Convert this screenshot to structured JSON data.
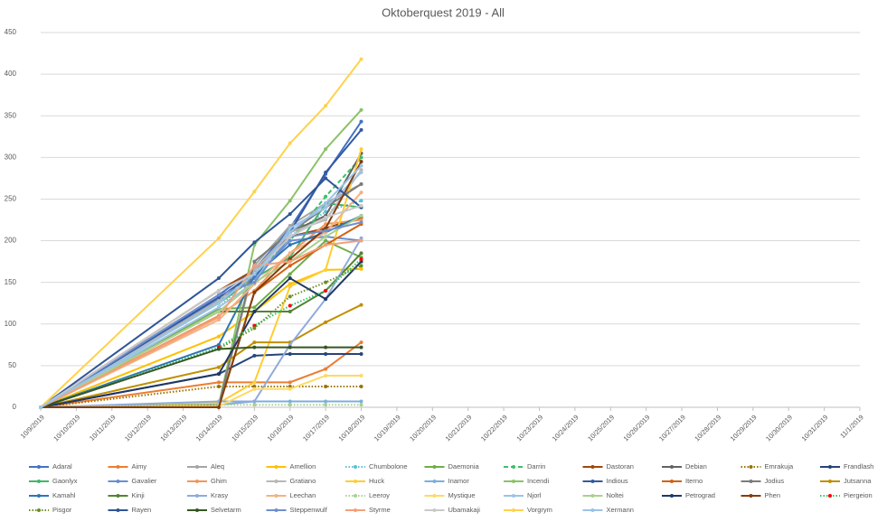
{
  "chart_data": {
    "type": "line",
    "title": "Oktoberquest 2019 - All",
    "x": [
      "10/9/2019",
      "10/14/2019",
      "10/15/2019",
      "10/16/2019",
      "10/17/2019",
      "10/18/2019"
    ],
    "xticks": [
      "10/9/2019",
      "10/10/2019",
      "10/11/2019",
      "10/12/2019",
      "10/13/2019",
      "10/14/2019",
      "10/15/2019",
      "10/16/2019",
      "10/17/2019",
      "10/18/2019",
      "10/19/2019",
      "10/20/2019",
      "10/21/2019",
      "10/22/2019",
      "10/23/2019",
      "10/24/2019",
      "10/25/2019",
      "10/26/2019",
      "10/27/2019",
      "10/28/2019",
      "10/29/2019",
      "10/30/2019",
      "10/31/2019",
      "11/1/2019"
    ],
    "ylim": [
      0,
      450
    ],
    "yticks": [
      0,
      50,
      100,
      150,
      200,
      250,
      300,
      350,
      400,
      450
    ],
    "grid": true,
    "legend": "bottom",
    "series": [
      {
        "name": "Adaral",
        "color": "#4472c4",
        "values": [
          0,
          135,
          165,
          215,
          280,
          343
        ]
      },
      {
        "name": "Aimy",
        "color": "#ed7d31",
        "values": [
          0,
          30,
          30,
          30,
          46,
          78
        ]
      },
      {
        "name": "Aleq",
        "color": "#a5a5a5",
        "values": [
          0,
          2,
          170,
          218,
          245,
          268
        ]
      },
      {
        "name": "Amellion",
        "color": "#ffc000",
        "values": [
          0,
          85,
          115,
          148,
          165,
          166
        ]
      },
      {
        "name": "Chumbolone",
        "color": "#5bc0d5",
        "dash": "dot",
        "values": [
          0,
          120,
          160,
          205,
          235,
          248
        ]
      },
      {
        "name": "Daemonia",
        "color": "#70ad47",
        "values": [
          0,
          118,
          120,
          160,
          200,
          180
        ]
      },
      {
        "name": "Darrin",
        "color": "#3cc06a",
        "dash": "dash",
        "values": [
          0,
          128,
          160,
          200,
          253,
          300
        ]
      },
      {
        "name": "Dastoran",
        "color": "#9e480e",
        "values": [
          0,
          140,
          165,
          205,
          215,
          228
        ]
      },
      {
        "name": "Debian",
        "color": "#636363",
        "values": [
          0,
          128,
          165,
          210,
          230,
          305
        ]
      },
      {
        "name": "Emrakuja",
        "color": "#997300",
        "dash": "dot",
        "values": [
          0,
          25,
          25,
          25,
          25,
          25
        ]
      },
      {
        "name": "Frandlash",
        "color": "#264478",
        "values": [
          0,
          40,
          62,
          64,
          64,
          64
        ]
      },
      {
        "name": "Gaonlyx",
        "color": "#43b56b",
        "values": [
          0,
          125,
          155,
          180,
          245,
          240
        ]
      },
      {
        "name": "Gavalier",
        "color": "#698ed0",
        "values": [
          0,
          130,
          155,
          200,
          205,
          200
        ]
      },
      {
        "name": "Ghim",
        "color": "#f1975a",
        "values": [
          0,
          110,
          140,
          185,
          220,
          225
        ]
      },
      {
        "name": "Gratiano",
        "color": "#b7b7b7",
        "values": [
          0,
          128,
          165,
          210,
          225,
          285
        ]
      },
      {
        "name": "Huck",
        "color": "#ffcd33",
        "values": [
          0,
          5,
          30,
          145,
          165,
          310
        ]
      },
      {
        "name": "Inamor",
        "color": "#7cafdd",
        "values": [
          0,
          3,
          7,
          7,
          7,
          7
        ]
      },
      {
        "name": "Incendi",
        "color": "#8cc168",
        "values": [
          0,
          3,
          195,
          248,
          310,
          357
        ]
      },
      {
        "name": "Indious",
        "color": "#335aa1",
        "values": [
          0,
          132,
          160,
          210,
          282,
          333
        ]
      },
      {
        "name": "Iterno",
        "color": "#d26012",
        "values": [
          0,
          1,
          138,
          170,
          195,
          220
        ]
      },
      {
        "name": "Jodius",
        "color": "#7b7b7b",
        "values": [
          0,
          2,
          175,
          210,
          240,
          268
        ]
      },
      {
        "name": "Jutsanna",
        "color": "#bf9000",
        "values": [
          0,
          48,
          78,
          78,
          102,
          123
        ]
      },
      {
        "name": "Kamahl",
        "color": "#2e75b6",
        "values": [
          0,
          75,
          158,
          195,
          210,
          230
        ]
      },
      {
        "name": "Kinji",
        "color": "#548235",
        "values": [
          0,
          115,
          115,
          115,
          140,
          185
        ]
      },
      {
        "name": "Krasy",
        "color": "#8faadc",
        "values": [
          0,
          7,
          7,
          75,
          130,
          203
        ]
      },
      {
        "name": "Leechan",
        "color": "#f4b183",
        "values": [
          0,
          105,
          148,
          185,
          210,
          258
        ]
      },
      {
        "name": "Leeroy",
        "color": "#a9d18e",
        "dash": "dot",
        "values": [
          0,
          3,
          3,
          3,
          3,
          3
        ]
      },
      {
        "name": "Mystique",
        "color": "#ffd966",
        "values": [
          0,
          1,
          22,
          22,
          38,
          38
        ]
      },
      {
        "name": "Njorl",
        "color": "#9dc3e6",
        "values": [
          0,
          120,
          150,
          215,
          240,
          282
        ]
      },
      {
        "name": "Noltei",
        "color": "#a9d18e",
        "values": [
          0,
          115,
          150,
          175,
          205,
          230
        ]
      },
      {
        "name": "Petrograd",
        "color": "#1f3864",
        "values": [
          0,
          40,
          115,
          155,
          130,
          175
        ]
      },
      {
        "name": "Phen",
        "color": "#843c0c",
        "values": [
          0,
          0,
          138,
          178,
          215,
          295
        ]
      },
      {
        "name": "Piergeion",
        "color": "#2ec866",
        "dash": "dot",
        "marker_color": "#ff0000",
        "values": [
          0,
          72,
          98,
          122,
          140,
          178
        ]
      },
      {
        "name": "Pisgor",
        "color": "#6b8e23",
        "dash": "dot",
        "values": [
          0,
          70,
          95,
          133,
          150,
          170
        ]
      },
      {
        "name": "Rayen",
        "color": "#2f5597",
        "values": [
          0,
          155,
          198,
          232,
          275,
          240
        ]
      },
      {
        "name": "Selvetarm",
        "color": "#375623",
        "values": [
          0,
          70,
          72,
          72,
          72,
          72
        ]
      },
      {
        "name": "Steppenwulf",
        "color": "#6f8fcf",
        "values": [
          0,
          135,
          150,
          205,
          212,
          222
        ]
      },
      {
        "name": "Styrme",
        "color": "#f4a07a",
        "values": [
          0,
          108,
          170,
          175,
          195,
          200
        ]
      },
      {
        "name": "Ubamakaji",
        "color": "#c9c9c9",
        "values": [
          0,
          140,
          160,
          205,
          228,
          242
        ]
      },
      {
        "name": "Vorgrym",
        "color": "#ffd24d",
        "values": [
          0,
          203,
          259,
          317,
          362,
          418
        ]
      },
      {
        "name": "Xermann",
        "color": "#9bc2e6",
        "values": [
          0,
          125,
          160,
          210,
          245,
          290
        ]
      }
    ]
  }
}
